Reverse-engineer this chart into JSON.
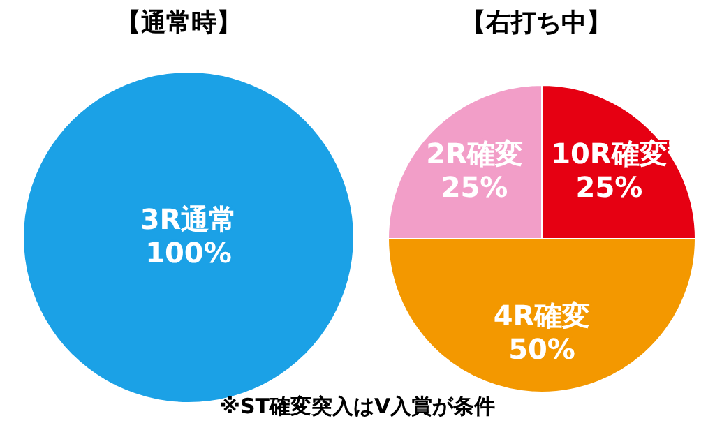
{
  "chart_data": [
    {
      "type": "pie",
      "title": "【通常時】",
      "categories": [
        "3R通常"
      ],
      "values": [
        100
      ],
      "value_labels": [
        "100%"
      ],
      "colors": [
        "#1ba1e6"
      ]
    },
    {
      "type": "pie",
      "title": "【右打ち中】",
      "categories": [
        "10R確変",
        "4R確変",
        "2R確変"
      ],
      "values": [
        25,
        50,
        25
      ],
      "value_labels": [
        "25%",
        "50%",
        "25%"
      ],
      "colors": [
        "#e60012",
        "#f39800",
        "#f29ec8"
      ],
      "annotations": [
        "※ST確変突入はV入賞が条件"
      ]
    }
  ]
}
